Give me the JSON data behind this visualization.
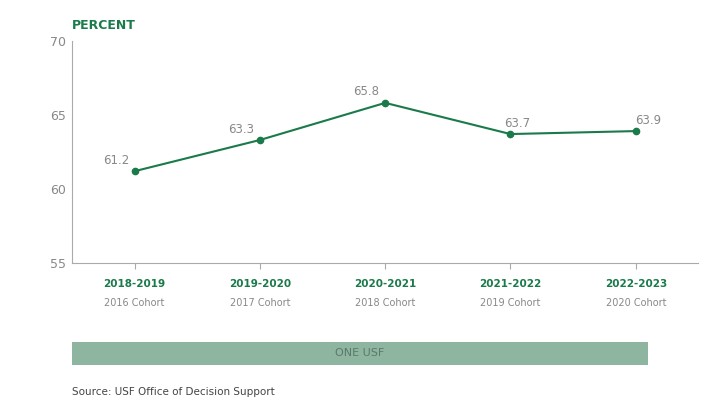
{
  "x_labels_line1": [
    "2018-2019",
    "2019-2020",
    "2020-2021",
    "2021-2022",
    "2022-2023"
  ],
  "x_labels_line2": [
    "2016 Cohort",
    "2017 Cohort",
    "2018 Cohort",
    "2019 Cohort",
    "2020 Cohort"
  ],
  "y_values": [
    61.2,
    63.3,
    65.8,
    63.7,
    63.9
  ],
  "ylim": [
    55,
    70
  ],
  "yticks": [
    55,
    60,
    65,
    70
  ],
  "line_color": "#1a7a4a",
  "marker_color": "#1a7a4a",
  "ylabel": "PERCENT",
  "ylabel_color": "#1a7a4a",
  "annotation_color": "#888888",
  "annotation_fontsize": 8.5,
  "tick_label_color_line1": "#1a7a4a",
  "tick_label_color_line2": "#888888",
  "tick_fontsize_line1": 7.5,
  "tick_fontsize_line2": 7.0,
  "banner_color": "#8db5a0",
  "banner_text": "ONE USF",
  "banner_text_color": "#5a7a6a",
  "source_text": "Source: USF Office of Decision Support",
  "source_fontsize": 7.5,
  "source_color": "#444444",
  "background_color": "#ffffff",
  "ytick_label_color": "#888888",
  "ytick_fontsize": 9,
  "spine_color": "#aaaaaa"
}
